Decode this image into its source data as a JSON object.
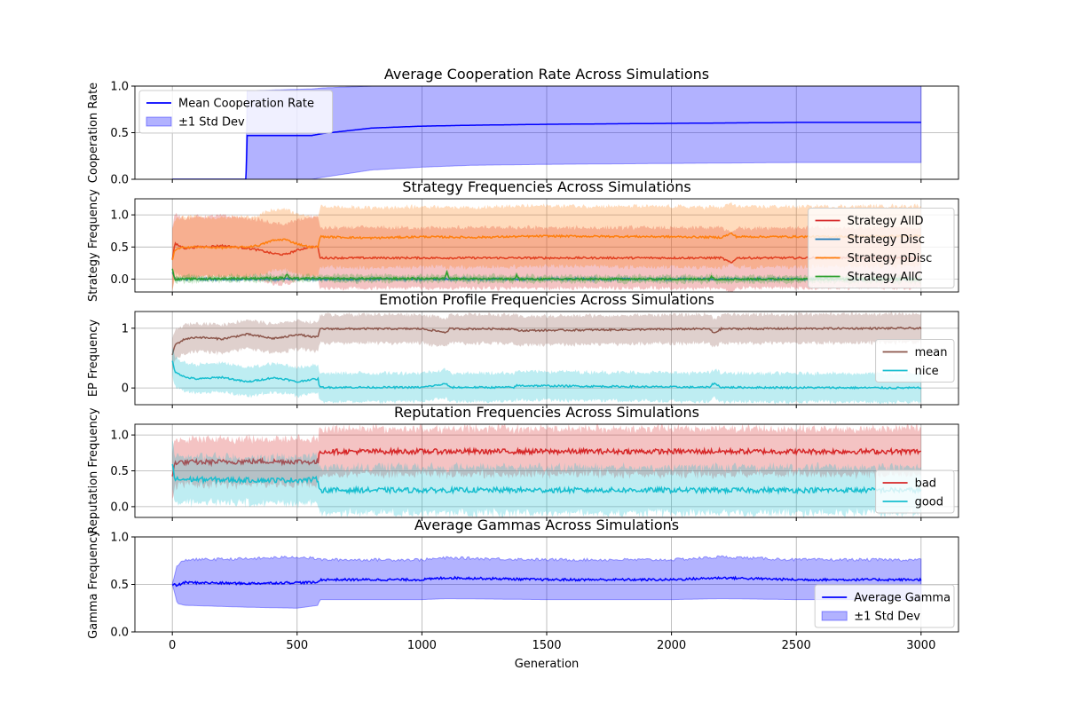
{
  "figure": {
    "xlabel": "Generation",
    "xlim": [
      -150,
      3150
    ],
    "xticks": [
      0,
      500,
      1000,
      1500,
      2000,
      2500,
      3000
    ],
    "grid": true
  },
  "chart_data": [
    {
      "type": "line",
      "title": "Average Cooperation Rate Across Simulations",
      "ylabel": "Cooperation Rate",
      "ylim": [
        0,
        1
      ],
      "yticks": [
        0.0,
        0.5,
        1.0
      ],
      "legend_position": "top-left",
      "series": [
        {
          "name": "Mean Cooperation Rate",
          "color": "#0000ff",
          "x": [
            0,
            295,
            300,
            560,
            600,
            700,
            800,
            1000,
            1200,
            1500,
            2000,
            2500,
            3000
          ],
          "y": [
            0,
            0,
            0.47,
            0.47,
            0.49,
            0.52,
            0.55,
            0.57,
            0.58,
            0.59,
            0.6,
            0.61,
            0.61
          ]
        }
      ],
      "bands": [
        {
          "name": "±1 Std Dev",
          "color": "#0000ff",
          "x": [
            0,
            295,
            300,
            560,
            600,
            700,
            800,
            1000,
            1200,
            1500,
            2000,
            2500,
            3000
          ],
          "lower": [
            0,
            0,
            0,
            0,
            0.02,
            0.06,
            0.1,
            0.13,
            0.15,
            0.16,
            0.17,
            0.18,
            0.18
          ],
          "upper": [
            0,
            0,
            0.95,
            0.97,
            0.98,
            0.99,
            1.0,
            1.0,
            1.0,
            1.0,
            1.0,
            1.0,
            1.0
          ]
        }
      ]
    },
    {
      "type": "line",
      "title": "Strategy Frequencies Across Simulations",
      "ylabel": "Strategy Frequency",
      "ylim": [
        -0.2,
        1.25
      ],
      "yticks": [
        0.0,
        0.5,
        1.0
      ],
      "legend_position": "right",
      "series": [
        {
          "name": "Strategy AllD",
          "color": "#d62728",
          "x": [
            0,
            10,
            50,
            100,
            200,
            300,
            350,
            400,
            450,
            500,
            550,
            585,
            590,
            1000,
            1500,
            2000,
            2200,
            2240,
            2260,
            2500,
            3000
          ],
          "y": [
            0.3,
            0.55,
            0.48,
            0.5,
            0.52,
            0.48,
            0.45,
            0.4,
            0.38,
            0.45,
            0.5,
            0.5,
            0.33,
            0.33,
            0.33,
            0.33,
            0.33,
            0.25,
            0.33,
            0.33,
            0.33
          ],
          "std": 0.47
        },
        {
          "name": "Strategy Disc",
          "color": "#1f77b4",
          "x": [
            0,
            10,
            3000
          ],
          "y": [
            0.1,
            0.0,
            0.0
          ],
          "std": 0.02
        },
        {
          "name": "Strategy pDisc",
          "color": "#ff7f0e",
          "x": [
            0,
            10,
            50,
            100,
            200,
            300,
            350,
            400,
            450,
            500,
            550,
            585,
            590,
            800,
            1000,
            1200,
            1500,
            2000,
            2200,
            2240,
            2260,
            2500,
            3000
          ],
          "y": [
            0.3,
            0.45,
            0.5,
            0.5,
            0.49,
            0.5,
            0.53,
            0.6,
            0.62,
            0.55,
            0.5,
            0.5,
            0.66,
            0.64,
            0.66,
            0.65,
            0.67,
            0.66,
            0.65,
            0.71,
            0.66,
            0.66,
            0.67
          ],
          "std": 0.47
        },
        {
          "name": "Strategy AllC",
          "color": "#2ca02c",
          "x": [
            0,
            10,
            450,
            460,
            470,
            1090,
            1100,
            1110,
            1370,
            1380,
            1390,
            2150,
            2160,
            2170,
            3000
          ],
          "y": [
            0.15,
            0.0,
            0.02,
            0.08,
            0.01,
            0.01,
            0.12,
            0.01,
            0.0,
            0.06,
            0.0,
            0.0,
            0.05,
            0.0,
            0.0
          ],
          "std": 0.05
        }
      ]
    },
    {
      "type": "line",
      "title": "Emotion Profile Frequencies Across Simulations",
      "ylabel": "EP Frequency",
      "ylim": [
        -0.28,
        1.28
      ],
      "yticks": [
        0,
        1
      ],
      "legend_position": "right",
      "series": [
        {
          "name": "mean",
          "color": "#8c564b",
          "x": [
            0,
            10,
            50,
            100,
            200,
            300,
            400,
            450,
            500,
            550,
            585,
            590,
            1000,
            1100,
            1110,
            1370,
            1380,
            2150,
            2170,
            2200,
            3000
          ],
          "y": [
            0.55,
            0.72,
            0.82,
            0.85,
            0.82,
            0.9,
            0.83,
            0.85,
            0.9,
            0.86,
            0.85,
            0.99,
            0.99,
            0.93,
            0.99,
            0.99,
            0.96,
            0.99,
            0.92,
            0.99,
            1.0
          ],
          "std": 0.24
        },
        {
          "name": "nice",
          "color": "#17becf",
          "x": [
            0,
            10,
            50,
            100,
            200,
            300,
            400,
            450,
            500,
            550,
            585,
            590,
            1000,
            1100,
            1110,
            1370,
            1380,
            2150,
            2170,
            2200,
            3000
          ],
          "y": [
            0.45,
            0.28,
            0.18,
            0.15,
            0.18,
            0.1,
            0.17,
            0.15,
            0.1,
            0.14,
            0.15,
            0.01,
            0.01,
            0.07,
            0.01,
            0.01,
            0.04,
            0.01,
            0.08,
            0.01,
            0.0
          ],
          "std": 0.24
        }
      ]
    },
    {
      "type": "line",
      "title": "Reputation Frequencies Across Simulations",
      "ylabel": "Reputation Frequency",
      "ylim": [
        -0.15,
        1.15
      ],
      "yticks": [
        0.0,
        0.5,
        1.0
      ],
      "legend_position": "bottom-right",
      "series": [
        {
          "name": "bad",
          "color": "#d62728",
          "x": [
            0,
            10,
            100,
            300,
            500,
            585,
            590,
            1000,
            2000,
            3000
          ],
          "y": [
            0.4,
            0.62,
            0.62,
            0.63,
            0.63,
            0.62,
            0.77,
            0.77,
            0.77,
            0.77
          ],
          "std": 0.32
        },
        {
          "name": "good",
          "color": "#17becf",
          "x": [
            0,
            10,
            100,
            300,
            500,
            585,
            590,
            1000,
            2000,
            3000
          ],
          "y": [
            0.6,
            0.38,
            0.38,
            0.37,
            0.37,
            0.38,
            0.23,
            0.23,
            0.23,
            0.23
          ],
          "std": 0.32
        }
      ]
    },
    {
      "type": "line",
      "title": "Average Gammas Across Simulations",
      "ylabel": "Gamma Frequency",
      "ylim": [
        0,
        1
      ],
      "yticks": [
        0.0,
        0.5,
        1.0
      ],
      "legend_position": "bottom-right",
      "series": [
        {
          "name": "Average Gamma",
          "color": "#0000ff",
          "x": [
            0,
            20,
            50,
            300,
            500,
            585,
            590,
            1000,
            1100,
            1500,
            2000,
            2200,
            2500,
            3000
          ],
          "y": [
            0.5,
            0.49,
            0.52,
            0.51,
            0.52,
            0.52,
            0.55,
            0.55,
            0.57,
            0.55,
            0.55,
            0.57,
            0.55,
            0.55
          ]
        }
      ],
      "bands": [
        {
          "name": "±1 Std Dev",
          "color": "#0000ff",
          "x": [
            0,
            20,
            50,
            300,
            500,
            585,
            590,
            1000,
            1100,
            1500,
            2000,
            2200,
            2500,
            3000
          ],
          "lower": [
            0.5,
            0.3,
            0.28,
            0.26,
            0.25,
            0.28,
            0.34,
            0.34,
            0.35,
            0.34,
            0.34,
            0.35,
            0.34,
            0.34
          ],
          "upper": [
            0.5,
            0.7,
            0.76,
            0.77,
            0.79,
            0.77,
            0.76,
            0.76,
            0.78,
            0.76,
            0.76,
            0.79,
            0.76,
            0.76
          ]
        }
      ]
    }
  ]
}
